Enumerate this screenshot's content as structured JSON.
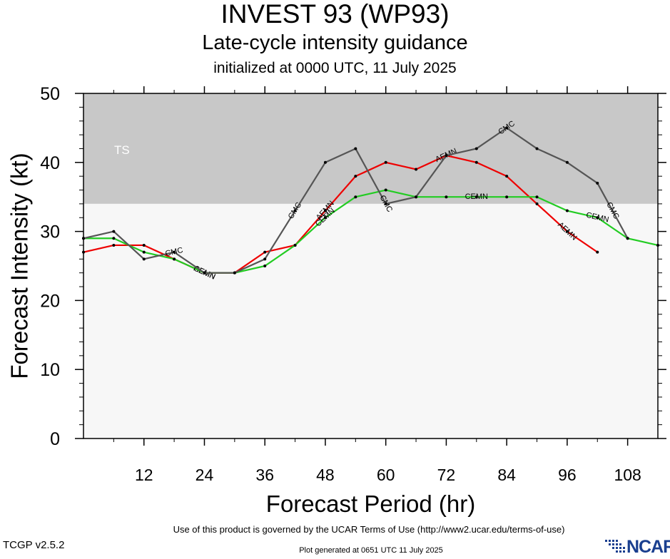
{
  "title": "INVEST 93 (WP93)",
  "subtitle": "Late-cycle intensity guidance",
  "init_line": "initialized at 0000 UTC, 11 July 2025",
  "footer": {
    "terms": "Use of this product is governed by the UCAR Terms of Use (http://www2.ucar.edu/terms-of-use)",
    "version": "TCGP v2.5.2",
    "generated": "Plot generated at 0651 UTC   11 July 2025",
    "logo": "NCAR"
  },
  "colors": {
    "AEMN": "#ee0000",
    "CEMN": "#22cc22",
    "CMC": "#555555",
    "ts_band": "#c8c8c8",
    "below_band": "#f7f7f7"
  },
  "chart_data": {
    "type": "line",
    "title": "INVEST 93 (WP93)",
    "subtitle": "Late-cycle intensity guidance",
    "xlabel": "Forecast Period (hr)",
    "ylabel": "Forecast Intensity (kt)",
    "xlim": [
      0,
      114
    ],
    "ylim": [
      0,
      50
    ],
    "xticks": [
      12,
      24,
      36,
      48,
      60,
      72,
      84,
      96,
      108
    ],
    "yticks": [
      0,
      10,
      20,
      30,
      40,
      50
    ],
    "bands": [
      {
        "label": "TS",
        "from": 34,
        "to": 50
      }
    ],
    "grid": false,
    "series": [
      {
        "name": "AEMN",
        "x": [
          0,
          6,
          12,
          18,
          24,
          30,
          36,
          42,
          48,
          54,
          60,
          66,
          72,
          78,
          84,
          90,
          96,
          102
        ],
        "values": [
          27,
          28,
          28,
          26,
          24,
          24,
          27,
          28,
          33,
          38,
          40,
          39,
          41,
          40,
          38,
          34,
          30,
          27
        ],
        "label_x": [
          24,
          48,
          72,
          96
        ]
      },
      {
        "name": "CEMN",
        "x": [
          0,
          6,
          12,
          18,
          24,
          30,
          36,
          42,
          48,
          54,
          60,
          66,
          72,
          78,
          84,
          90,
          96,
          102,
          108,
          114
        ],
        "values": [
          29,
          29,
          27,
          26,
          24,
          24,
          25,
          28,
          32,
          35,
          36,
          35,
          35,
          35,
          35,
          35,
          33,
          32,
          29,
          28
        ],
        "label_x": [
          24,
          48,
          78,
          102
        ]
      },
      {
        "name": "CMC",
        "x": [
          0,
          6,
          12,
          18,
          24,
          30,
          36,
          42,
          48,
          54,
          60,
          66,
          72,
          78,
          84,
          90,
          96,
          102,
          108
        ],
        "values": [
          29,
          30,
          26,
          27,
          24,
          24,
          26,
          33,
          40,
          42,
          34,
          35,
          41,
          42,
          45,
          42,
          40,
          37,
          29
        ],
        "label_x": [
          18,
          42,
          60,
          84,
          105
        ]
      }
    ]
  }
}
